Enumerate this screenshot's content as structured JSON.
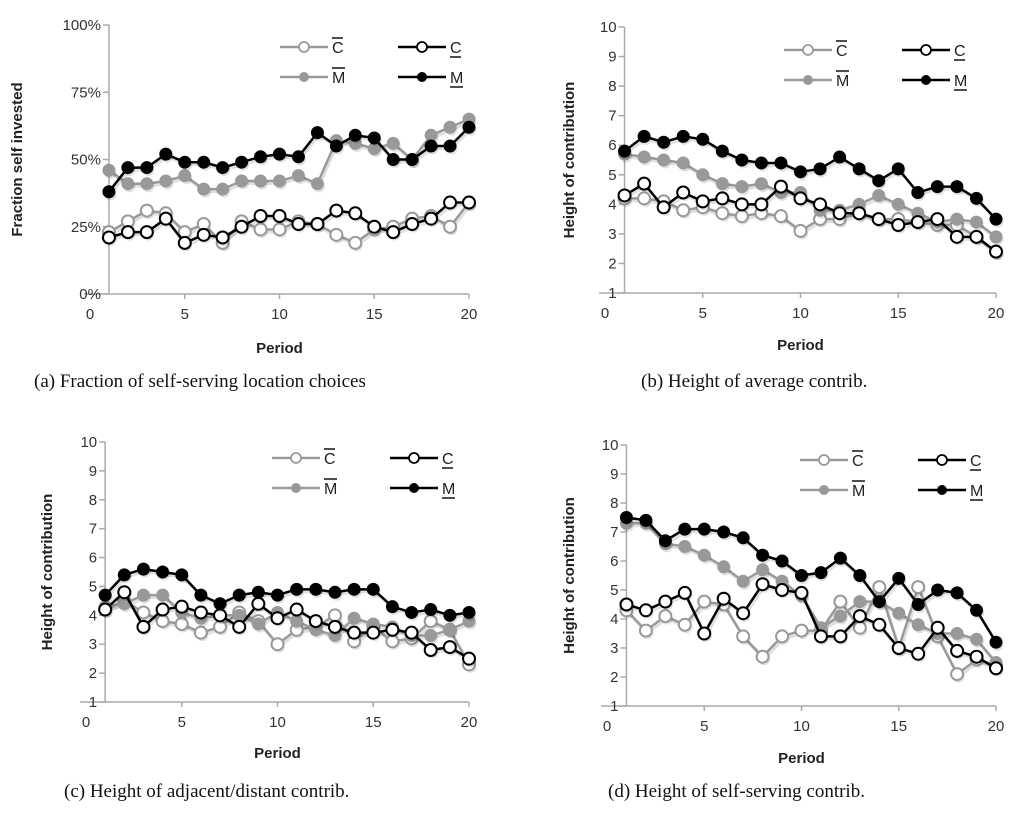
{
  "legend": {
    "series": [
      {
        "key": "C_bar",
        "label": "C",
        "mark": "overline",
        "color": "#999999",
        "marker": "open"
      },
      {
        "key": "C_under",
        "label": "C",
        "mark": "underline",
        "color": "#000000",
        "marker": "open"
      },
      {
        "key": "M_bar",
        "label": "M",
        "mark": "overline",
        "color": "#999999",
        "marker": "filled"
      },
      {
        "key": "M_under",
        "label": "M",
        "mark": "underline",
        "color": "#000000",
        "marker": "filled"
      }
    ]
  },
  "chart_data": [
    {
      "id": "a",
      "type": "line",
      "caption": "(a) Fraction of self-serving location choices",
      "xlabel": "Period",
      "ylabel": "Fraction self invested",
      "x": [
        1,
        2,
        3,
        4,
        5,
        6,
        7,
        8,
        9,
        10,
        11,
        12,
        13,
        14,
        15,
        16,
        17,
        18,
        19,
        20
      ],
      "xlim": [
        0,
        20
      ],
      "xticks": [
        "0",
        "5",
        "10",
        "15",
        "20"
      ],
      "ylim": [
        0,
        100
      ],
      "yticks": [
        "0%",
        "25%",
        "50%",
        "75%",
        "100%"
      ],
      "ytick_values": [
        0,
        25,
        50,
        75,
        100
      ],
      "grid": false,
      "legend_position": "top-right",
      "series": [
        {
          "name": "C-bar",
          "key": "C_bar",
          "values": [
            23,
            27,
            31,
            30,
            23,
            26,
            19,
            27,
            24,
            24,
            27,
            26,
            22,
            19,
            24,
            25,
            28,
            29,
            25,
            34
          ]
        },
        {
          "name": "M-bar",
          "key": "M_bar",
          "values": [
            46,
            41,
            41,
            42,
            44,
            39,
            39,
            42,
            42,
            42,
            44,
            41,
            57,
            56,
            54,
            56,
            50,
            59,
            62,
            65
          ]
        },
        {
          "name": "C-underline",
          "key": "C_under",
          "values": [
            21,
            23,
            23,
            28,
            19,
            22,
            21,
            25,
            29,
            29,
            26,
            26,
            31,
            30,
            25,
            23,
            26,
            28,
            34,
            34
          ]
        },
        {
          "name": "M-underline",
          "key": "M_under",
          "values": [
            38,
            47,
            47,
            52,
            49,
            49,
            47,
            49,
            51,
            52,
            51,
            60,
            55,
            59,
            58,
            50,
            50,
            55,
            55,
            62
          ]
        }
      ]
    },
    {
      "id": "b",
      "type": "line",
      "caption": "(b) Height of average contrib.",
      "xlabel": "Period",
      "ylabel": "Height of contribution",
      "x": [
        1,
        2,
        3,
        4,
        5,
        6,
        7,
        8,
        9,
        10,
        11,
        12,
        13,
        14,
        15,
        16,
        17,
        18,
        19,
        20
      ],
      "xlim": [
        0,
        20
      ],
      "xticks": [
        "0",
        "5",
        "10",
        "15",
        "20"
      ],
      "ylim": [
        1,
        10
      ],
      "yticks": [
        "1",
        "2",
        "3",
        "4",
        "5",
        "6",
        "7",
        "8",
        "9",
        "10"
      ],
      "ytick_values": [
        1,
        2,
        3,
        4,
        5,
        6,
        7,
        8,
        9,
        10
      ],
      "grid": false,
      "legend_position": "top-right",
      "series": [
        {
          "name": "C-bar",
          "key": "C_bar",
          "values": [
            4.2,
            4.2,
            4.1,
            3.8,
            3.9,
            3.7,
            3.6,
            3.7,
            3.6,
            3.1,
            3.5,
            3.5,
            3.7,
            3.5,
            3.5,
            3.4,
            3.3,
            3.3,
            2.9,
            2.4
          ]
        },
        {
          "name": "M-bar",
          "key": "M_bar",
          "values": [
            5.7,
            5.6,
            5.5,
            5.4,
            5.0,
            4.7,
            4.6,
            4.7,
            4.4,
            4.4,
            3.8,
            3.8,
            4.0,
            4.3,
            4.0,
            3.7,
            3.4,
            3.5,
            3.4,
            2.9
          ]
        },
        {
          "name": "C-underline",
          "key": "C_under",
          "values": [
            4.3,
            4.7,
            3.9,
            4.4,
            4.1,
            4.2,
            4.0,
            4.0,
            4.6,
            4.2,
            4.0,
            3.7,
            3.7,
            3.5,
            3.3,
            3.4,
            3.5,
            2.9,
            2.9,
            2.4
          ]
        },
        {
          "name": "M-underline",
          "key": "M_under",
          "values": [
            5.8,
            6.3,
            6.1,
            6.3,
            6.2,
            5.8,
            5.5,
            5.4,
            5.4,
            5.1,
            5.2,
            5.6,
            5.2,
            4.8,
            5.2,
            4.4,
            4.6,
            4.6,
            4.2,
            3.5
          ]
        }
      ]
    },
    {
      "id": "c",
      "type": "line",
      "caption": "(c) Height of adjacent/distant contrib.",
      "xlabel": "Period",
      "ylabel": "Height of contribution",
      "x": [
        1,
        2,
        3,
        4,
        5,
        6,
        7,
        8,
        9,
        10,
        11,
        12,
        13,
        14,
        15,
        16,
        17,
        18,
        19,
        20
      ],
      "xlim": [
        0,
        20
      ],
      "xticks": [
        "0",
        "5",
        "10",
        "15",
        "20"
      ],
      "ylim": [
        1,
        10
      ],
      "yticks": [
        "1",
        "2",
        "3",
        "4",
        "5",
        "6",
        "7",
        "8",
        "9",
        "10"
      ],
      "ytick_values": [
        1,
        2,
        3,
        4,
        5,
        6,
        7,
        8,
        9,
        10
      ],
      "grid": false,
      "legend_position": "top-right",
      "series": [
        {
          "name": "C-bar",
          "key": "C_bar",
          "values": [
            4.2,
            4.5,
            4.1,
            3.8,
            3.7,
            3.4,
            3.6,
            4.1,
            3.8,
            3.0,
            3.5,
            3.6,
            4.0,
            3.1,
            3.6,
            3.1,
            3.2,
            3.8,
            3.5,
            2.3
          ]
        },
        {
          "name": "M-bar",
          "key": "M_bar",
          "values": [
            4.3,
            4.4,
            4.7,
            4.7,
            4.1,
            3.9,
            4.0,
            4.0,
            3.7,
            4.1,
            3.8,
            3.5,
            3.3,
            3.9,
            3.7,
            3.6,
            3.3,
            3.3,
            3.5,
            3.8
          ]
        },
        {
          "name": "C-underline",
          "key": "C_under",
          "values": [
            4.2,
            4.8,
            3.6,
            4.2,
            4.3,
            4.1,
            4.0,
            3.6,
            4.4,
            3.9,
            4.2,
            3.8,
            3.6,
            3.4,
            3.4,
            3.5,
            3.4,
            2.8,
            2.9,
            2.5
          ]
        },
        {
          "name": "M-underline",
          "key": "M_under",
          "values": [
            4.7,
            5.4,
            5.6,
            5.5,
            5.4,
            4.7,
            4.4,
            4.7,
            4.8,
            4.7,
            4.9,
            4.9,
            4.8,
            4.9,
            4.9,
            4.3,
            4.1,
            4.2,
            4.0,
            4.1
          ]
        }
      ]
    },
    {
      "id": "d",
      "type": "line",
      "caption": "(d) Height of self-serving contrib.",
      "xlabel": "Period",
      "ylabel": "Height of contribution",
      "x": [
        1,
        2,
        3,
        4,
        5,
        6,
        7,
        8,
        9,
        10,
        11,
        12,
        13,
        14,
        15,
        16,
        17,
        18,
        19,
        20
      ],
      "xlim": [
        0,
        20
      ],
      "xticks": [
        "0",
        "5",
        "10",
        "15",
        "20"
      ],
      "ylim": [
        1,
        10
      ],
      "yticks": [
        "1",
        "2",
        "3",
        "4",
        "5",
        "6",
        "7",
        "8",
        "9",
        "10"
      ],
      "ytick_values": [
        1,
        2,
        3,
        4,
        5,
        6,
        7,
        8,
        9,
        10
      ],
      "grid": false,
      "legend_position": "top-right",
      "series": [
        {
          "name": "C-bar",
          "key": "C_bar",
          "values": [
            4.3,
            3.6,
            4.1,
            3.8,
            4.6,
            4.5,
            3.4,
            2.7,
            3.4,
            3.6,
            3.6,
            4.6,
            3.7,
            5.1,
            3.0,
            5.1,
            3.4,
            2.1,
            2.6,
            2.4
          ]
        },
        {
          "name": "M-bar",
          "key": "M_bar",
          "values": [
            7.3,
            7.3,
            6.6,
            6.5,
            6.2,
            5.8,
            5.3,
            5.7,
            5.3,
            4.8,
            3.7,
            4.1,
            4.6,
            4.6,
            4.2,
            3.8,
            3.5,
            3.5,
            3.3,
            2.5
          ]
        },
        {
          "name": "C-underline",
          "key": "C_under",
          "values": [
            4.5,
            4.3,
            4.6,
            4.9,
            3.5,
            4.7,
            4.2,
            5.2,
            5.0,
            4.9,
            3.4,
            3.4,
            4.1,
            3.8,
            3.0,
            2.8,
            3.7,
            2.9,
            2.7,
            2.3
          ]
        },
        {
          "name": "M-underline",
          "key": "M_under",
          "values": [
            7.5,
            7.4,
            6.7,
            7.1,
            7.1,
            7.0,
            6.8,
            6.2,
            6.0,
            5.5,
            5.6,
            6.1,
            5.5,
            4.6,
            5.4,
            4.5,
            5.0,
            4.9,
            4.3,
            3.2
          ]
        }
      ]
    }
  ]
}
